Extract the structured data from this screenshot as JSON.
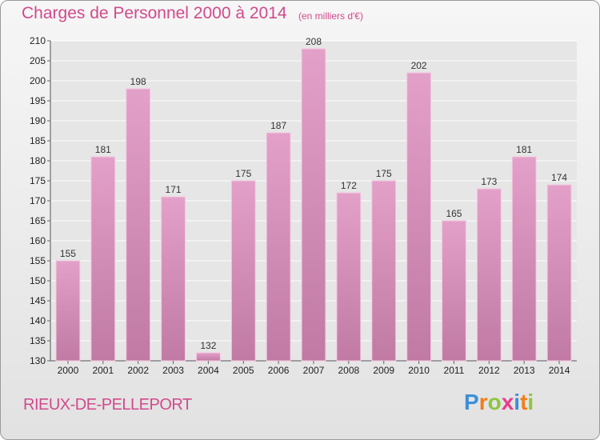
{
  "header": {
    "title": "Charges de Personnel 2000 à 2014",
    "subtitle": "(en milliers d'€)"
  },
  "footer": {
    "town": "RIEUX-DE-PELLEPORT",
    "logo_letters": [
      "P",
      "r",
      "o",
      "x",
      "i",
      "t",
      "i"
    ]
  },
  "colors": {
    "bar": "#e3a0c8",
    "bar_dark": "#c07aa4",
    "accent": "#d14a8c",
    "logo": [
      "#3d8fd8",
      "#f07e1b",
      "#8cc63f",
      "#e83c8a",
      "#3d8fd8",
      "#f07e1b",
      "#8cc63f"
    ]
  },
  "chart_data": {
    "type": "bar",
    "title": "Charges de Personnel 2000 à 2014",
    "subtitle": "(en milliers d'€)",
    "categories": [
      "2000",
      "2001",
      "2002",
      "2003",
      "2004",
      "2005",
      "2006",
      "2007",
      "2008",
      "2009",
      "2010",
      "2011",
      "2012",
      "2013",
      "2014"
    ],
    "values": [
      155,
      181,
      198,
      171,
      132,
      175,
      187,
      208,
      172,
      175,
      202,
      165,
      173,
      181,
      174
    ],
    "ylim": [
      130,
      210
    ],
    "yticks": [
      130,
      135,
      140,
      145,
      150,
      155,
      160,
      165,
      170,
      175,
      180,
      185,
      190,
      195,
      200,
      205,
      210
    ],
    "grid": true,
    "legend": "none"
  }
}
